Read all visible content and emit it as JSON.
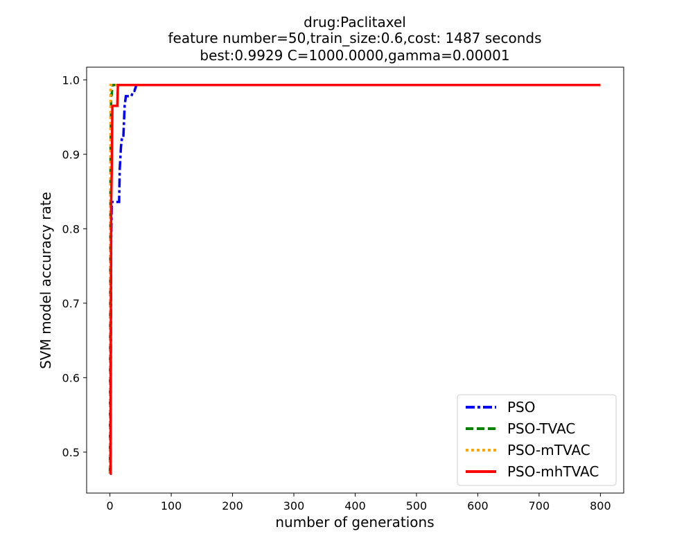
{
  "chart_data": {
    "type": "line",
    "title_lines": [
      "drug:Paclitaxel",
      "feature number=50,train_size:0.6,cost: 1487 seconds",
      "best:0.9929  C=1000.0000,gamma=0.00001"
    ],
    "xlabel": "number of generations",
    "ylabel": "SVM model accuracy rate",
    "xlim": [
      -38,
      838
    ],
    "ylim": [
      0.445,
      1.017
    ],
    "xticks": [
      0,
      100,
      200,
      300,
      400,
      500,
      600,
      700,
      800
    ],
    "yticks": [
      0.5,
      0.6,
      0.7,
      0.8,
      0.9,
      1.0
    ],
    "ytick_labels": [
      "0.5",
      "0.6",
      "0.7",
      "0.8",
      "0.9",
      "1.0"
    ],
    "grid": false,
    "legend_placement": "lower-right",
    "series": [
      {
        "name": "PSO",
        "color": "#0000ff",
        "dash": "dashdot",
        "x": [
          0,
          1,
          2,
          3,
          4,
          5,
          15,
          16,
          18,
          20,
          22,
          24,
          26,
          35,
          38,
          40,
          42,
          43,
          45,
          60,
          100,
          200,
          300,
          400,
          500,
          600,
          700,
          800
        ],
        "y": [
          0.471,
          0.471,
          0.78,
          0.836,
          0.836,
          0.836,
          0.836,
          0.88,
          0.91,
          0.925,
          0.925,
          0.965,
          0.978,
          0.978,
          0.985,
          0.985,
          0.99,
          0.993,
          0.993,
          0.993,
          0.993,
          0.993,
          0.993,
          0.993,
          0.993,
          0.993,
          0.993,
          0.993
        ]
      },
      {
        "name": "PSO-TVAC",
        "color": "#008000",
        "dash": "dashed",
        "x": [
          0,
          1,
          2,
          3,
          4,
          6,
          100,
          200,
          300,
          400,
          500,
          600,
          700,
          800
        ],
        "y": [
          0.471,
          0.89,
          0.98,
          0.98,
          0.993,
          0.993,
          0.993,
          0.993,
          0.993,
          0.993,
          0.993,
          0.993,
          0.993,
          0.993
        ]
      },
      {
        "name": "PSO-mTVAC",
        "color": "#ffa500",
        "dash": "dotted",
        "x": [
          0,
          1,
          2,
          3,
          4,
          100,
          200,
          300,
          400,
          500,
          600,
          700,
          800
        ],
        "y": [
          0.471,
          0.993,
          0.993,
          0.993,
          0.993,
          0.993,
          0.993,
          0.993,
          0.993,
          0.993,
          0.993,
          0.993,
          0.993
        ]
      },
      {
        "name": "PSO-mhTVAC",
        "color": "#ff0000",
        "dash": "solid",
        "x": [
          0,
          1,
          2,
          3,
          4,
          5,
          12,
          13,
          14,
          100,
          200,
          300,
          400,
          500,
          600,
          700,
          800
        ],
        "y": [
          0.471,
          0.471,
          0.835,
          0.88,
          0.965,
          0.965,
          0.965,
          0.993,
          0.993,
          0.993,
          0.993,
          0.993,
          0.993,
          0.993,
          0.993,
          0.993,
          0.993
        ]
      }
    ]
  }
}
